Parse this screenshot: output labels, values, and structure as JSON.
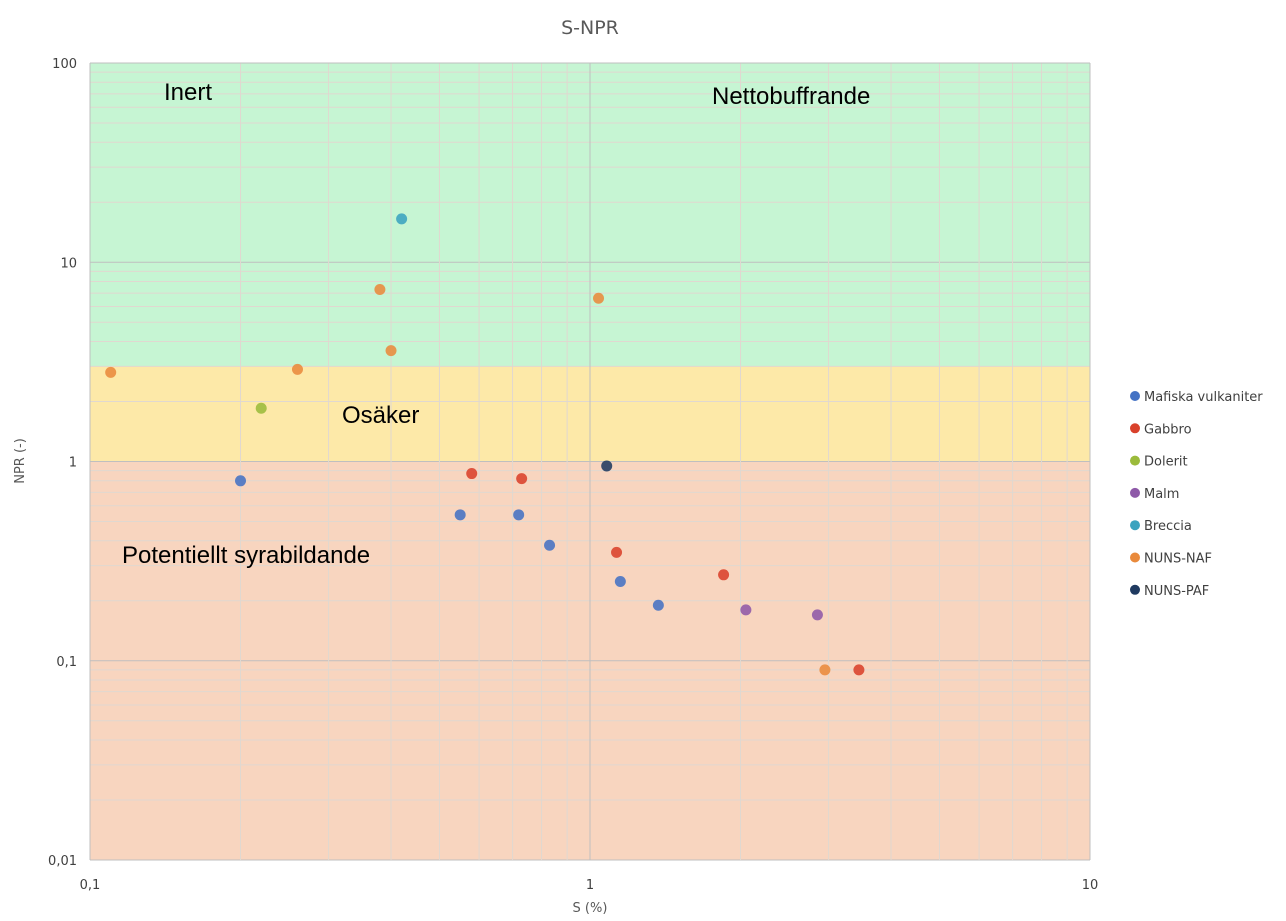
{
  "chart_data": {
    "type": "scatter",
    "title": "S-NPR",
    "xlabel": "S (%)",
    "ylabel": "NPR (-)",
    "xscale": "log",
    "yscale": "log",
    "xlim": [
      0.1,
      10
    ],
    "ylim": [
      0.01,
      100
    ],
    "x_ticks": [
      {
        "v": 0.1,
        "label": "0,1"
      },
      {
        "v": 1,
        "label": "1"
      },
      {
        "v": 10,
        "label": "10"
      }
    ],
    "y_ticks": [
      {
        "v": 100,
        "label": "100"
      },
      {
        "v": 10,
        "label": "10"
      },
      {
        "v": 1,
        "label": "1"
      },
      {
        "v": 0.1,
        "label": "0,1"
      },
      {
        "v": 0.01,
        "label": "0,01"
      }
    ],
    "grid": true,
    "legend_position": "right",
    "regions": [
      {
        "label": "Inert",
        "y_range": [
          3,
          100
        ],
        "color": "#c6f5d3"
      },
      {
        "label": "Nettobuffrande",
        "y_range": [
          3,
          100
        ],
        "color": "#c6f5d3"
      },
      {
        "label": "Osäker",
        "y_range": [
          1,
          3
        ],
        "color": "#fde9a8"
      },
      {
        "label": "Potentiellt syrabildande",
        "y_range": [
          0.01,
          1
        ],
        "color": "#f8d5bf"
      }
    ],
    "series": [
      {
        "name": "Mafiska vulkaniter",
        "color": "#4472c4",
        "points": [
          [
            0.2,
            0.8
          ],
          [
            0.55,
            0.54
          ],
          [
            0.72,
            0.54
          ],
          [
            0.83,
            0.38
          ],
          [
            1.15,
            0.25
          ],
          [
            1.37,
            0.19
          ]
        ]
      },
      {
        "name": "Gabbro",
        "color": "#d9412b",
        "points": [
          [
            0.58,
            0.87
          ],
          [
            0.73,
            0.82
          ],
          [
            1.13,
            0.35
          ],
          [
            1.85,
            0.27
          ],
          [
            3.45,
            0.09
          ]
        ]
      },
      {
        "name": "Dolerit",
        "color": "#9bbb3b",
        "points": [
          [
            0.22,
            1.85
          ]
        ]
      },
      {
        "name": "Malm",
        "color": "#8e59a8",
        "points": [
          [
            2.05,
            0.18
          ],
          [
            2.85,
            0.17
          ]
        ]
      },
      {
        "name": "Breccia",
        "color": "#3ba3bf",
        "points": [
          [
            0.42,
            16.5
          ]
        ]
      },
      {
        "name": "NUNS-NAF",
        "color": "#e98a3c",
        "points": [
          [
            0.11,
            2.8
          ],
          [
            0.26,
            2.9
          ],
          [
            0.38,
            7.3
          ],
          [
            0.4,
            3.6
          ],
          [
            1.04,
            6.6
          ],
          [
            2.95,
            0.09
          ]
        ]
      },
      {
        "name": "NUNS-PAF",
        "color": "#1f3a60",
        "points": [
          [
            1.08,
            0.95
          ]
        ]
      }
    ]
  }
}
